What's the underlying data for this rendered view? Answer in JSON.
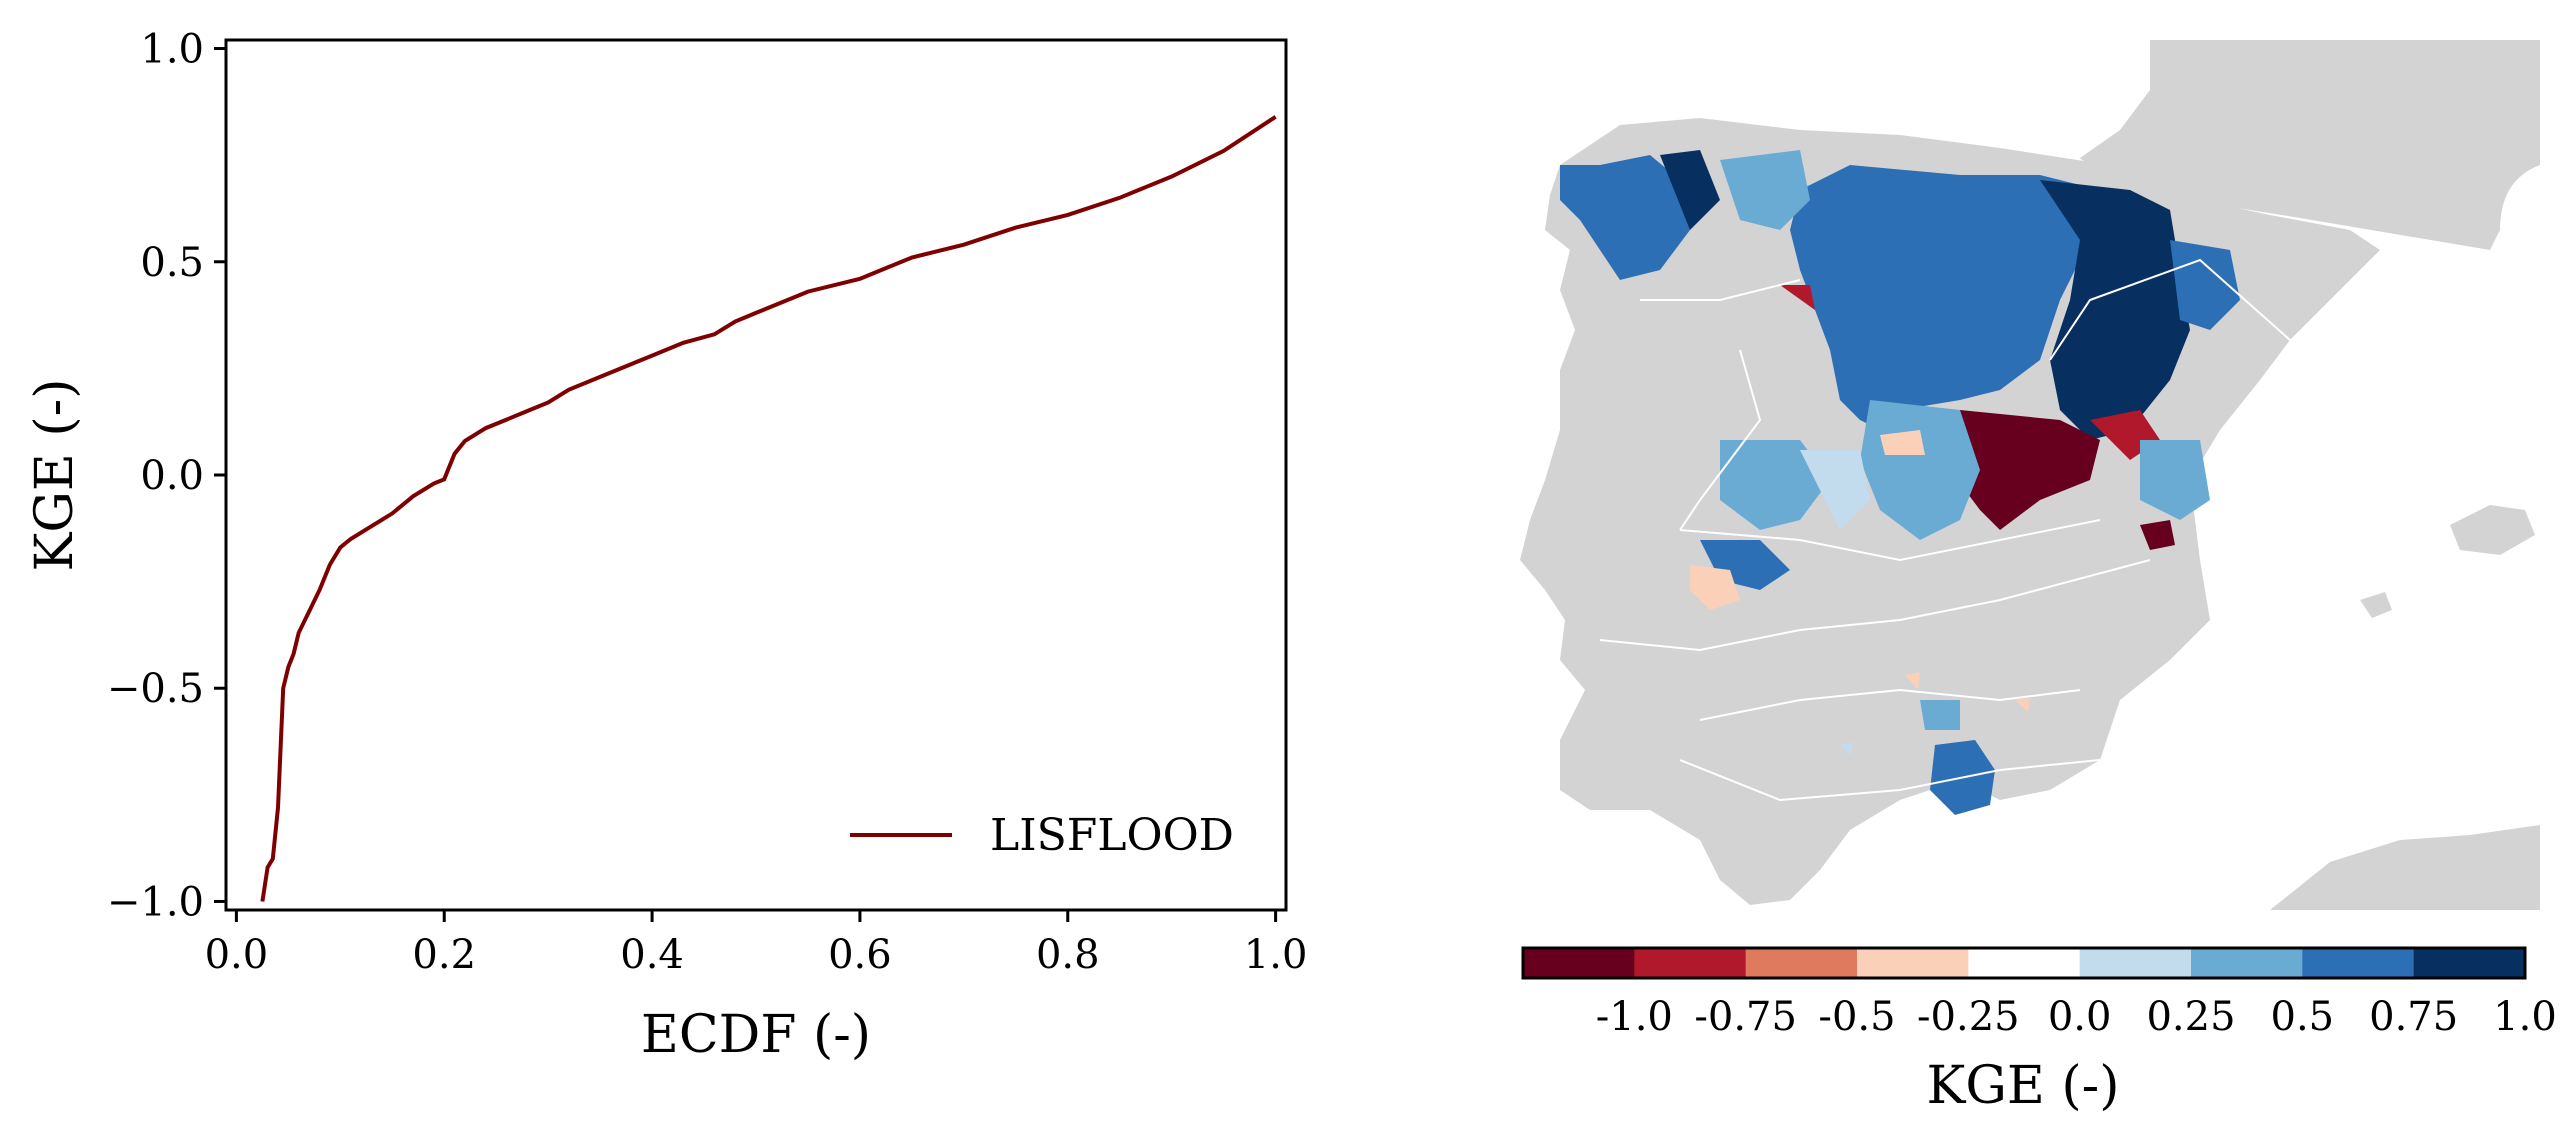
{
  "chart_data": [
    {
      "type": "line",
      "xlabel": "ECDF (-)",
      "ylabel": "KGE (-)",
      "xlim": [
        -0.01,
        1.01
      ],
      "ylim": [
        -1.02,
        1.02
      ],
      "xticks": [
        {
          "value": 0.0,
          "label": "0.0"
        },
        {
          "value": 0.2,
          "label": "0.2"
        },
        {
          "value": 0.4,
          "label": "0.4"
        },
        {
          "value": 0.6,
          "label": "0.6"
        },
        {
          "value": 0.8,
          "label": "0.8"
        },
        {
          "value": 1.0,
          "label": "1.0"
        }
      ],
      "yticks": [
        {
          "value": -1.0,
          "label": "−1.0"
        },
        {
          "value": -0.5,
          "label": "−0.5"
        },
        {
          "value": 0.0,
          "label": "0.0"
        },
        {
          "value": 0.5,
          "label": "0.5"
        },
        {
          "value": 1.0,
          "label": "1.0"
        }
      ],
      "grid": false,
      "legend_position": "lower-right",
      "series": [
        {
          "name": "LISFLOOD",
          "color": "#7f0000",
          "x": [
            0.025,
            0.03,
            0.035,
            0.04,
            0.045,
            0.05,
            0.055,
            0.06,
            0.07,
            0.08,
            0.09,
            0.1,
            0.11,
            0.13,
            0.15,
            0.17,
            0.19,
            0.2,
            0.21,
            0.22,
            0.24,
            0.26,
            0.28,
            0.3,
            0.32,
            0.35,
            0.38,
            0.4,
            0.43,
            0.46,
            0.48,
            0.5,
            0.55,
            0.6,
            0.65,
            0.7,
            0.75,
            0.8,
            0.85,
            0.9,
            0.95,
            1.0
          ],
          "y": [
            -1.0,
            -0.92,
            -0.9,
            -0.78,
            -0.5,
            -0.45,
            -0.42,
            -0.37,
            -0.32,
            -0.27,
            -0.21,
            -0.17,
            -0.15,
            -0.12,
            -0.09,
            -0.05,
            -0.02,
            -0.01,
            0.05,
            0.08,
            0.11,
            0.13,
            0.15,
            0.17,
            0.2,
            0.23,
            0.26,
            0.28,
            0.31,
            0.33,
            0.36,
            0.38,
            0.43,
            0.46,
            0.51,
            0.54,
            0.58,
            0.61,
            0.65,
            0.7,
            0.76,
            0.84
          ]
        }
      ]
    },
    {
      "type": "heatmap",
      "colorbar_label": "KGE (-)",
      "colorbar_orientation": "horizontal",
      "colorbar_colors": [
        "#67001f",
        "#b2182b",
        "#d6604d",
        "#f4a582",
        "#fddbc7",
        "#f7f7f7",
        "#d1e5f0",
        "#92c5de",
        "#4393c3",
        "#2166ac",
        "#053061"
      ],
      "colorbar_segments": [
        "#67001f",
        "#b2182b",
        "#e07a5f",
        "#fbd0b9",
        "#ffffff",
        "#c2dcee",
        "#6aabd4",
        "#2c6fb5",
        "#072f5f"
      ],
      "colorbar_ticks": [
        "-1.0",
        "-0.75",
        "-0.5",
        "-0.25",
        "0.0",
        "0.25",
        "0.5",
        "0.75",
        "1.0"
      ],
      "background_land_color": "#d3d3d3"
    }
  ]
}
